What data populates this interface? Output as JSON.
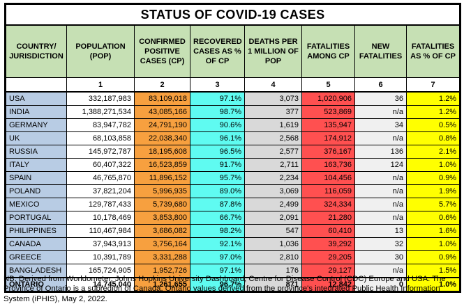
{
  "title": "STATUS OF COVID-19 CASES",
  "columns": [
    {
      "label": "COUNTRY/ JURISDICTION",
      "num": ""
    },
    {
      "label": "POPULATION (POP)",
      "num": "1"
    },
    {
      "label": "CONFIRMED POSITIVE CASES (CP)",
      "num": "2"
    },
    {
      "label": "RECOVERED CASES AS % OF CP",
      "num": "3"
    },
    {
      "label": "DEATHS PER 1 MILLION OF POP",
      "num": "4"
    },
    {
      "label": "FATALITIES AMONG CP",
      "num": "5"
    },
    {
      "label": "NEW FATALITIES",
      "num": "6"
    },
    {
      "label": "FATALITIES AS % OF CP",
      "num": "7"
    }
  ],
  "rows": [
    [
      "USA",
      "332,187,983",
      "83,109,018",
      "97.1%",
      "3,073",
      "1,020,906",
      "36",
      "1.2%"
    ],
    [
      "INDIA",
      "1,388,271,534",
      "43,085,166",
      "98.7%",
      "377",
      "523,869",
      "n/a",
      "1.2%"
    ],
    [
      "GERMANY",
      "83,947,782",
      "24,791,190",
      "90.6%",
      "1,619",
      "135,947",
      "34",
      "0.5%"
    ],
    [
      "UK",
      "68,103,858",
      "22,038,340",
      "96.1%",
      "2,568",
      "174,912",
      "n/a",
      "0.8%"
    ],
    [
      "RUSSIA",
      "145,972,787",
      "18,195,608",
      "96.5%",
      "2,577",
      "376,167",
      "136",
      "2.1%"
    ],
    [
      "ITALY",
      "60,407,322",
      "16,523,859",
      "91.7%",
      "2,711",
      "163,736",
      "124",
      "1.0%"
    ],
    [
      "SPAIN",
      "46,765,870",
      "11,896,152",
      "95.7%",
      "2,234",
      "104,456",
      "n/a",
      "0.9%"
    ],
    [
      "POLAND",
      "37,821,204",
      "5,996,935",
      "89.0%",
      "3,069",
      "116,059",
      "n/a",
      "1.9%"
    ],
    [
      "MEXICO",
      "129,787,433",
      "5,739,680",
      "87.8%",
      "2,499",
      "324,334",
      "n/a",
      "5.7%"
    ],
    [
      "PORTUGAL",
      "10,178,469",
      "3,853,800",
      "66.7%",
      "2,091",
      "21,280",
      "n/a",
      "0.6%"
    ],
    [
      "PHILIPPINES",
      "110,467,984",
      "3,686,082",
      "98.2%",
      "547",
      "60,410",
      "13",
      "1.6%"
    ],
    [
      "CANADA",
      "37,943,913",
      "3,756,164",
      "92.1%",
      "1,036",
      "39,292",
      "32",
      "1.0%"
    ],
    [
      "GREECE",
      "10,391,789",
      "3,331,288",
      "97.0%",
      "2,810",
      "29,205",
      "30",
      "0.9%"
    ],
    [
      "BANGLADESH",
      "165,724,905",
      "1,952,726",
      "97.1%",
      "176",
      "29,127",
      "n/a",
      "1.5%"
    ]
  ],
  "total_row": [
    "ONTARIO",
    "14,745,040",
    "1,261,655",
    "96.7%",
    "871",
    "12,842",
    "0",
    "1.0%"
  ],
  "footnote": "NB: Derived from Worldometer, Johns Hopkins University Dashboard, Centre for Disease Control (CDC) Europe and USA. The Province of Ontario is a subregion of Canada. Ontario values derived from the province's integrated Public Health Information System (iPHIS), May 2, 2022.",
  "colors": {
    "header_green": "#C6E0B4",
    "country_blue": "#B8CCE4",
    "cp_orange": "#F7A03F",
    "recovered_cyan": "#5FFBF1",
    "deaths_gray": "#D9D9D9",
    "fatalities_red": "#FF5050",
    "new_fatalities_gray": "#F0F0F0",
    "pct_yellow": "#FFFF00"
  },
  "chart_data": {
    "type": "table",
    "title": "STATUS OF COVID-19 CASES",
    "columns": [
      "COUNTRY/JURISDICTION",
      "POPULATION (POP)",
      "CONFIRMED POSITIVE CASES (CP)",
      "RECOVERED CASES AS % OF CP",
      "DEATHS PER 1 MILLION OF POP",
      "FATALITIES AMONG CP",
      "NEW FATALITIES",
      "FATALITIES AS % OF CP"
    ]
  }
}
